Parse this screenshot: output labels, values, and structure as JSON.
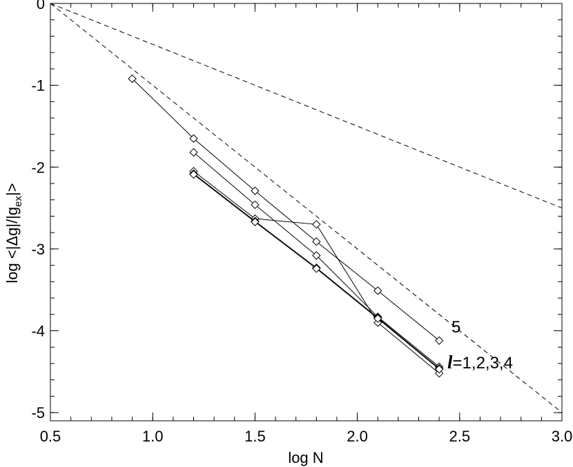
{
  "chart_data": {
    "type": "line",
    "xlabel": "log N",
    "ylabel_parts": {
      "pre": "log <|Δg|/|g",
      "sub": "ex",
      "post": "|>"
    },
    "xlim": [
      0.5,
      3.0
    ],
    "ylim": [
      -5.1,
      0.0
    ],
    "xticks": [
      "0.5",
      "1.0",
      "1.5",
      "2.0",
      "2.5",
      "3.0"
    ],
    "yticks": [
      "0",
      "-1",
      "-2",
      "-3",
      "-4",
      "-5"
    ],
    "grid": false,
    "series": [
      {
        "x": [
          0.9,
          1.2,
          1.5,
          1.8,
          2.1,
          2.4
        ],
        "y": [
          -0.92,
          -1.65,
          -2.29,
          -2.91,
          -3.51,
          -4.12
        ]
      },
      {
        "x": [
          1.2,
          1.5,
          1.8,
          2.1,
          2.4
        ],
        "y": [
          -1.82,
          -2.46,
          -3.08,
          -3.83,
          -4.44
        ]
      },
      {
        "x": [
          1.2,
          1.5,
          1.8,
          2.1,
          2.4
        ],
        "y": [
          -2.05,
          -2.63,
          -2.7,
          -3.9,
          -4.52
        ]
      },
      {
        "x": [
          1.2,
          1.5,
          1.8,
          2.1,
          2.4
        ],
        "y": [
          -2.08,
          -2.66,
          -3.23,
          -3.84,
          -4.46
        ]
      },
      {
        "x": [
          1.2,
          1.5,
          1.8,
          2.1,
          2.4
        ],
        "y": [
          -2.09,
          -2.67,
          -3.24,
          -3.85,
          -4.47
        ]
      }
    ],
    "reference_lines": [
      {
        "style": "dashed",
        "x": [
          0.5,
          3.0
        ],
        "y": [
          0.0,
          -2.5
        ]
      },
      {
        "style": "dashed",
        "x": [
          0.5,
          3.0
        ],
        "y": [
          0.0,
          -5.0
        ]
      }
    ],
    "annotations": [
      {
        "text": "5",
        "x": 2.46,
        "y": -4.02
      },
      {
        "l_symbol": "l",
        "text": "=1,2,3,4",
        "x": 2.44,
        "y": -4.46
      }
    ]
  }
}
